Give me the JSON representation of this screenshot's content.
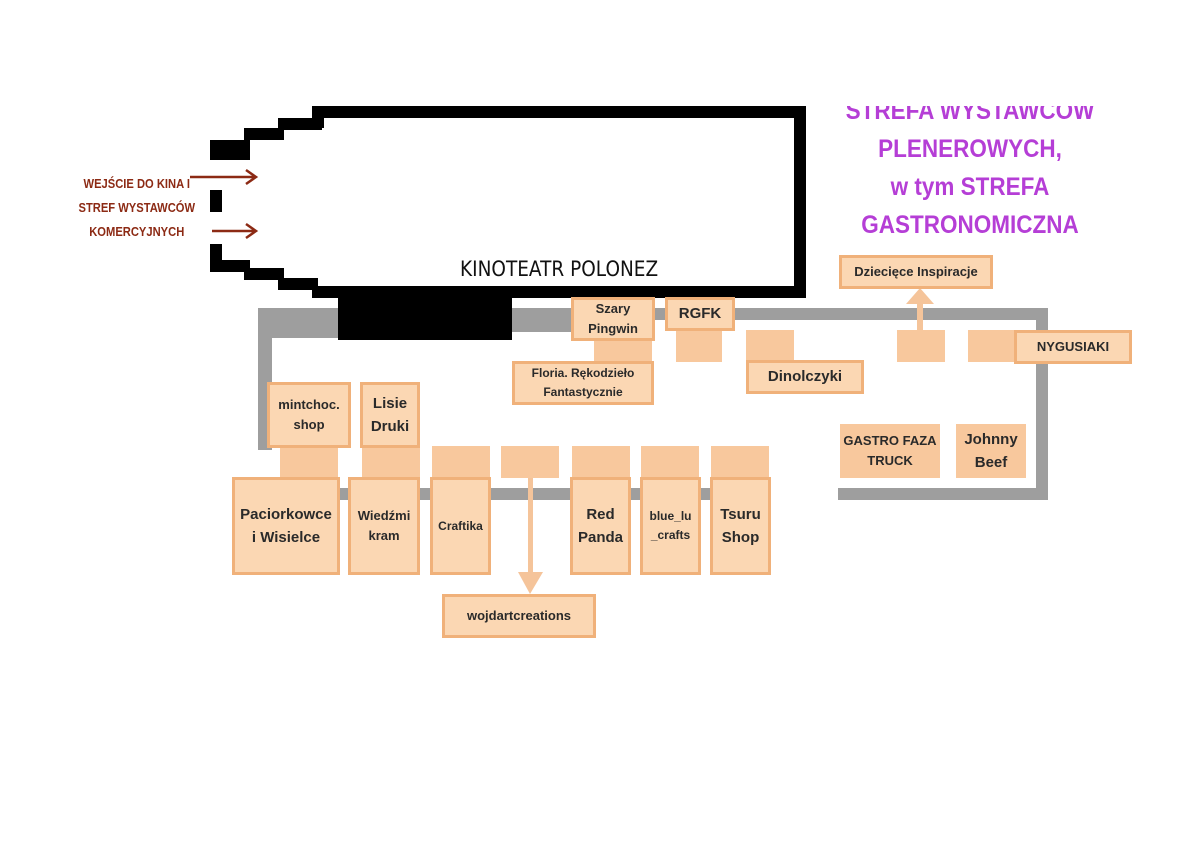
{
  "entrance": {
    "label_line1": "WEJŚCIE DO KINA I",
    "label_line2": "STREF WYSTAWCÓW",
    "label_line3": "KOMERCYJNYCH"
  },
  "cinema": {
    "name": "KINOTEATR POLONEZ"
  },
  "zone": {
    "line1": "STREFA WYSTAWCÓW",
    "line2": "PLENEROWYCH,",
    "line3": "w tym STREFA",
    "line4": "GASTRONOMICZNA"
  },
  "colors": {
    "booth_fill": "#fbd7b3",
    "booth_border": "#f0b17a",
    "path_gray": "#9e9e9e",
    "entrance_red": "#8c2a14",
    "zone_purple": "#b53ed6"
  },
  "booths": {
    "szary_pingwin": "Szary Pingwin",
    "rgfk": "RGFK",
    "floria": "Floria. Rękodzieło Fantastycznie",
    "dinolczyki": "Dinolczyki",
    "dzieciece": "Dziecięce Inspiracje",
    "nygusiaki": "NYGUSIAKI",
    "gastro_faza": "GASTRO FAZA TRUCK",
    "johnny_beef": "Johnny Beef",
    "mintchoc": "mintchoc. shop",
    "lisie": "Lisie Druki",
    "paciorkowce": "Paciorkowce i Wisielce",
    "wiedzmi": "Wiedźmi kram",
    "craftika": "Craftika",
    "red_panda": "Red Panda",
    "blue_lu": "blue_lu_crafts",
    "tsuru": "Tsuru Shop",
    "wojdart": "wojdartcreations"
  }
}
